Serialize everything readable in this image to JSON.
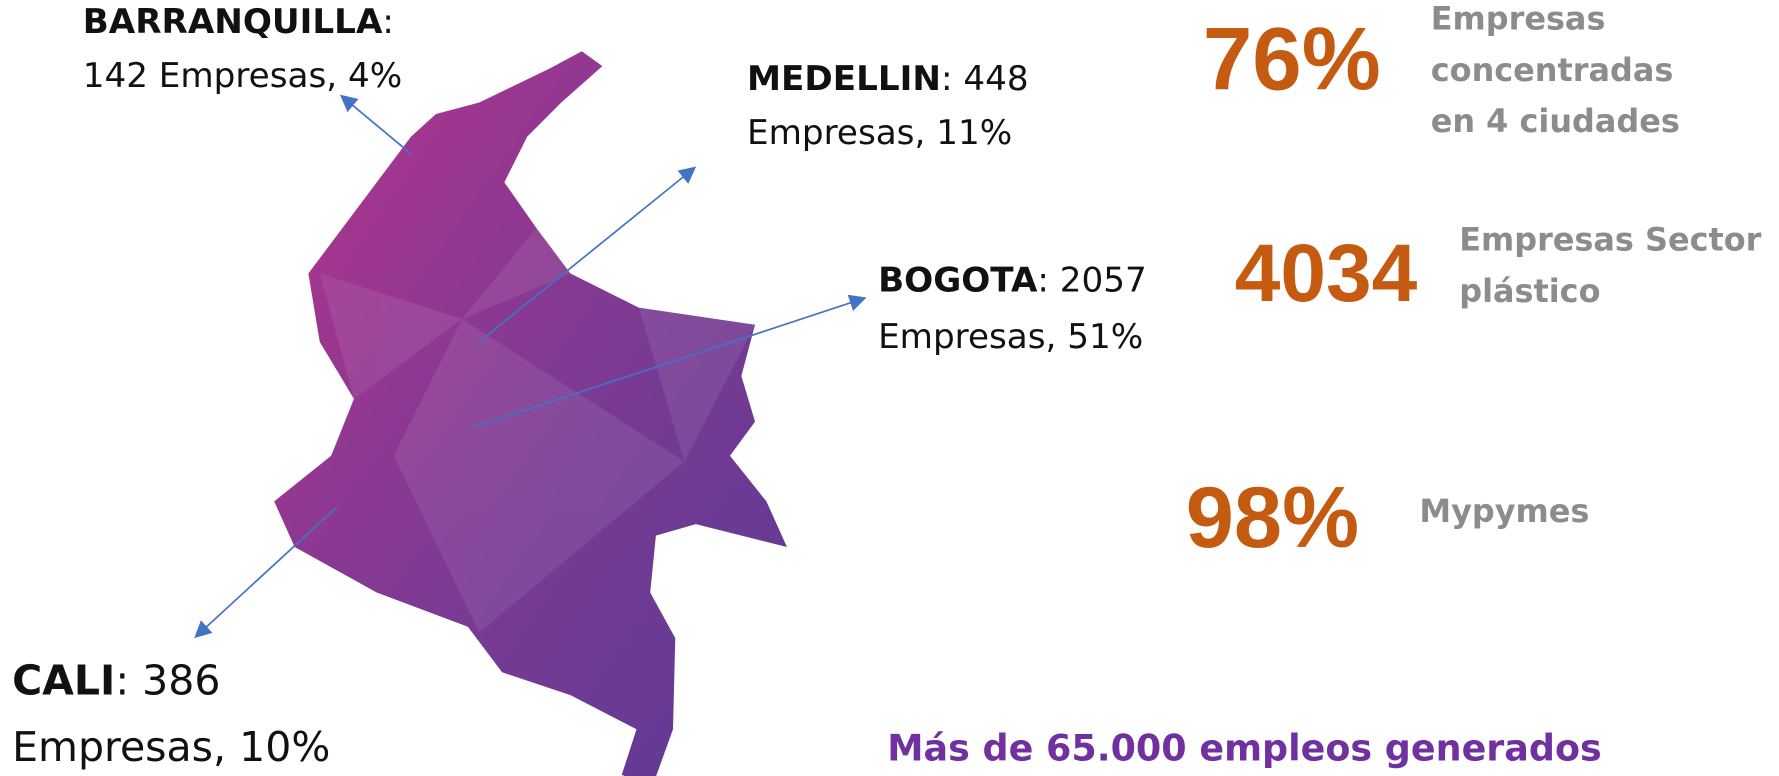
{
  "cities": [
    {
      "name": "BARRANQUILLA",
      "lines": [
        ":",
        "142 Empresas, 4%"
      ]
    },
    {
      "name": "MEDELLIN",
      "lines": [
        ": 448",
        "Empresas, 11%"
      ]
    },
    {
      "name": "BOGOTA",
      "lines": [
        ": 2057",
        "Empresas, 51%"
      ]
    },
    {
      "name": "CALI",
      "lines": [
        ": 386",
        "Empresas, 10%"
      ]
    }
  ],
  "stats": [
    {
      "value": "76%",
      "label": [
        "Empresas",
        "concentradas",
        "en 4 ciudades"
      ]
    },
    {
      "value": "4034",
      "label": [
        "Empresas Sector",
        "plástico"
      ]
    },
    {
      "value": "98%",
      "label": [
        "Mypymes"
      ]
    }
  ],
  "footer": "Más de 65.000 empleos generados"
}
